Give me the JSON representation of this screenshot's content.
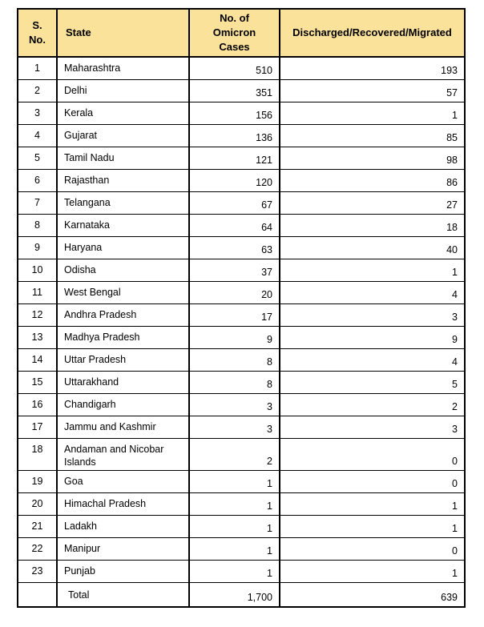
{
  "chart_data": {
    "type": "table",
    "columns": [
      "S. No.",
      "State",
      "No. of Omicron Cases",
      "Discharged/Recovered/Migrated"
    ],
    "rows": [
      {
        "sno": "1",
        "state": "Maharashtra",
        "cases": "510",
        "discharged": "193"
      },
      {
        "sno": "2",
        "state": "Delhi",
        "cases": "351",
        "discharged": "57"
      },
      {
        "sno": "3",
        "state": "Kerala",
        "cases": "156",
        "discharged": "1"
      },
      {
        "sno": "4",
        "state": "Gujarat",
        "cases": "136",
        "discharged": "85"
      },
      {
        "sno": "5",
        "state": "Tamil Nadu",
        "cases": "121",
        "discharged": "98"
      },
      {
        "sno": "6",
        "state": "Rajasthan",
        "cases": "120",
        "discharged": "86"
      },
      {
        "sno": "7",
        "state": "Telangana",
        "cases": "67",
        "discharged": "27"
      },
      {
        "sno": "8",
        "state": "Karnataka",
        "cases": "64",
        "discharged": "18"
      },
      {
        "sno": "9",
        "state": "Haryana",
        "cases": "63",
        "discharged": "40"
      },
      {
        "sno": "10",
        "state": "Odisha",
        "cases": "37",
        "discharged": "1"
      },
      {
        "sno": "11",
        "state": "West Bengal",
        "cases": "20",
        "discharged": "4"
      },
      {
        "sno": "12",
        "state": "Andhra Pradesh",
        "cases": "17",
        "discharged": "3"
      },
      {
        "sno": "13",
        "state": "Madhya Pradesh",
        "cases": "9",
        "discharged": "9"
      },
      {
        "sno": "14",
        "state": "Uttar Pradesh",
        "cases": "8",
        "discharged": "4"
      },
      {
        "sno": "15",
        "state": "Uttarakhand",
        "cases": "8",
        "discharged": "5"
      },
      {
        "sno": "16",
        "state": "Chandigarh",
        "cases": "3",
        "discharged": "2"
      },
      {
        "sno": "17",
        "state": "Jammu and Kashmir",
        "cases": "3",
        "discharged": "3"
      },
      {
        "sno": "18",
        "state": "Andaman and Nicobar Islands",
        "cases": "2",
        "discharged": "0"
      },
      {
        "sno": "19",
        "state": "Goa",
        "cases": "1",
        "discharged": "0"
      },
      {
        "sno": "20",
        "state": "Himachal Pradesh",
        "cases": "1",
        "discharged": "1"
      },
      {
        "sno": "21",
        "state": "Ladakh",
        "cases": "1",
        "discharged": "1"
      },
      {
        "sno": "22",
        "state": "Manipur",
        "cases": "1",
        "discharged": "0"
      },
      {
        "sno": "23",
        "state": "Punjab",
        "cases": "1",
        "discharged": "1"
      }
    ],
    "total": {
      "label": "Total",
      "cases": "1,700",
      "discharged": "639"
    },
    "styles": {
      "header_bg": "#FBE29B",
      "row_bg": "#FFFFFF",
      "border_color": "#000000",
      "text_color": "#000000"
    }
  }
}
